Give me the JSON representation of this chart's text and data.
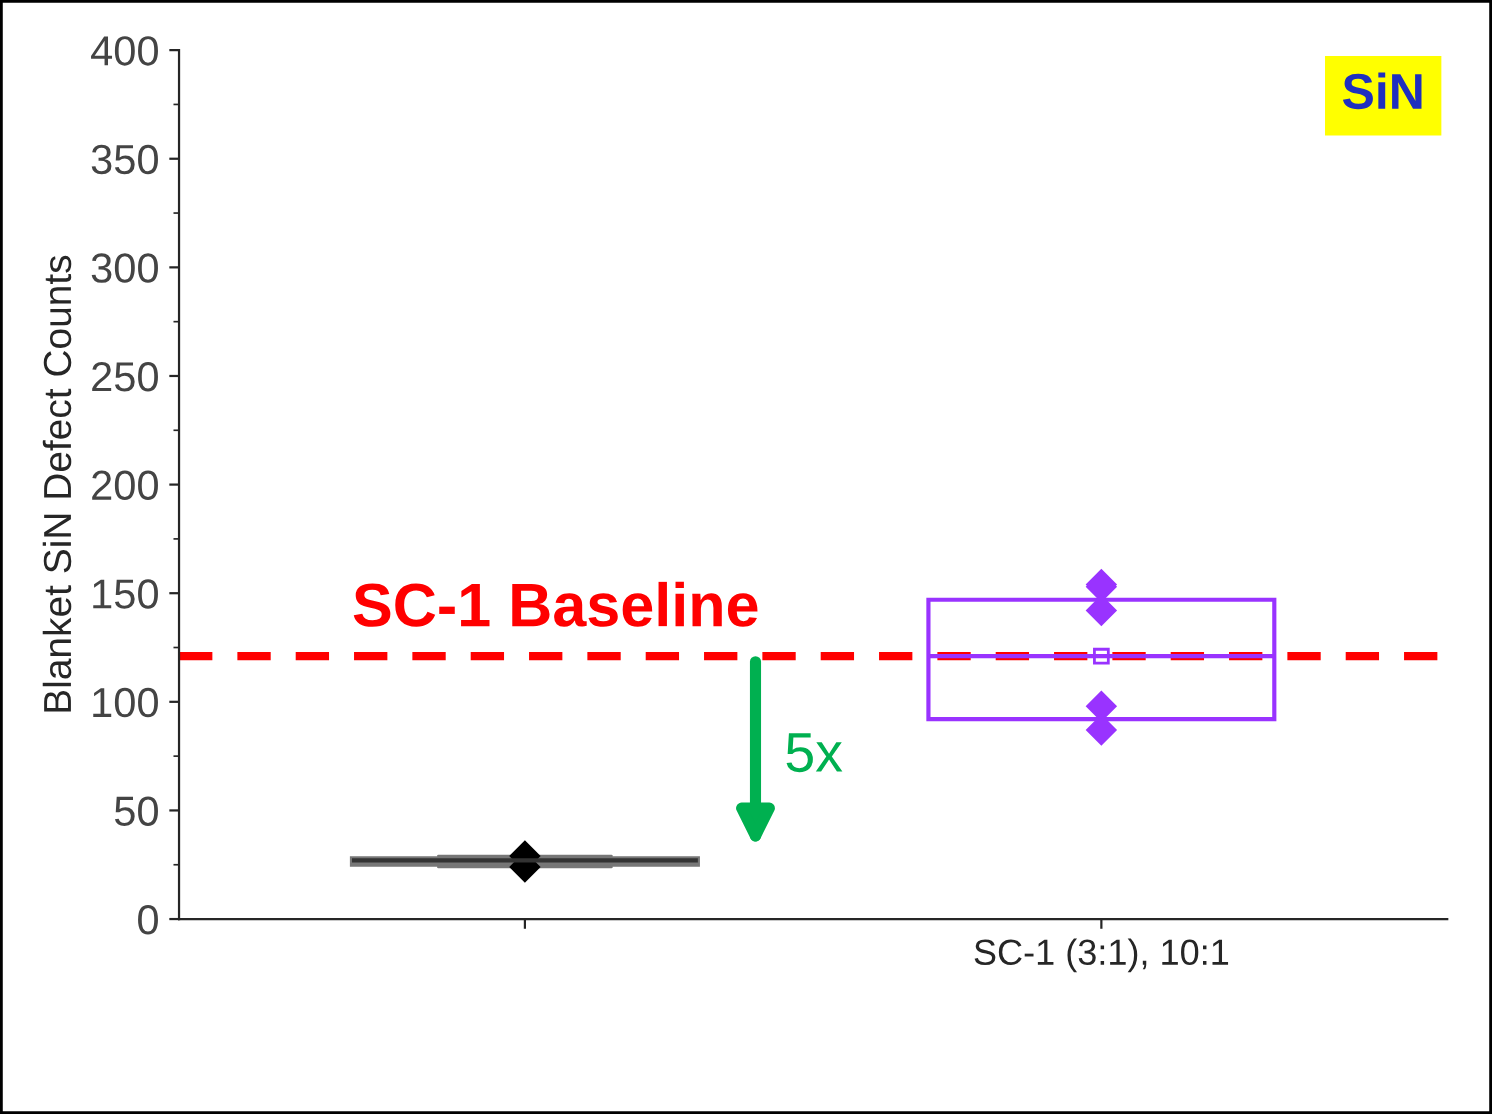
{
  "chart_data": {
    "type": "box",
    "ylabel": "Blanket SiN Defect Counts",
    "categories": [
      null,
      "SC-1 (3:1), 10:1"
    ],
    "boxes": [
      {
        "low": 24,
        "q1": 25,
        "median": 27,
        "q3": 28,
        "high": 29,
        "outliers": [
          29,
          24
        ]
      },
      {
        "low": 92,
        "q1": 92,
        "median": 121,
        "q3": 147,
        "high": 147,
        "mean": 121,
        "outliers": [
          154,
          153,
          142,
          98,
          87
        ]
      }
    ],
    "colors": [
      "#777777",
      "#9933ff"
    ],
    "ylim": [
      0,
      400
    ],
    "yticks": [
      0,
      50,
      100,
      150,
      200,
      250,
      300,
      350,
      400
    ],
    "ref_lines": [
      {
        "axis": "y",
        "value": 121,
        "label": "SC-1 Baseline",
        "color": "#ff0000",
        "line_style": "dashed"
      }
    ],
    "annotations": [
      "5x",
      "SiN"
    ],
    "marker": "diamond",
    "grid": false,
    "legend": false
  }
}
